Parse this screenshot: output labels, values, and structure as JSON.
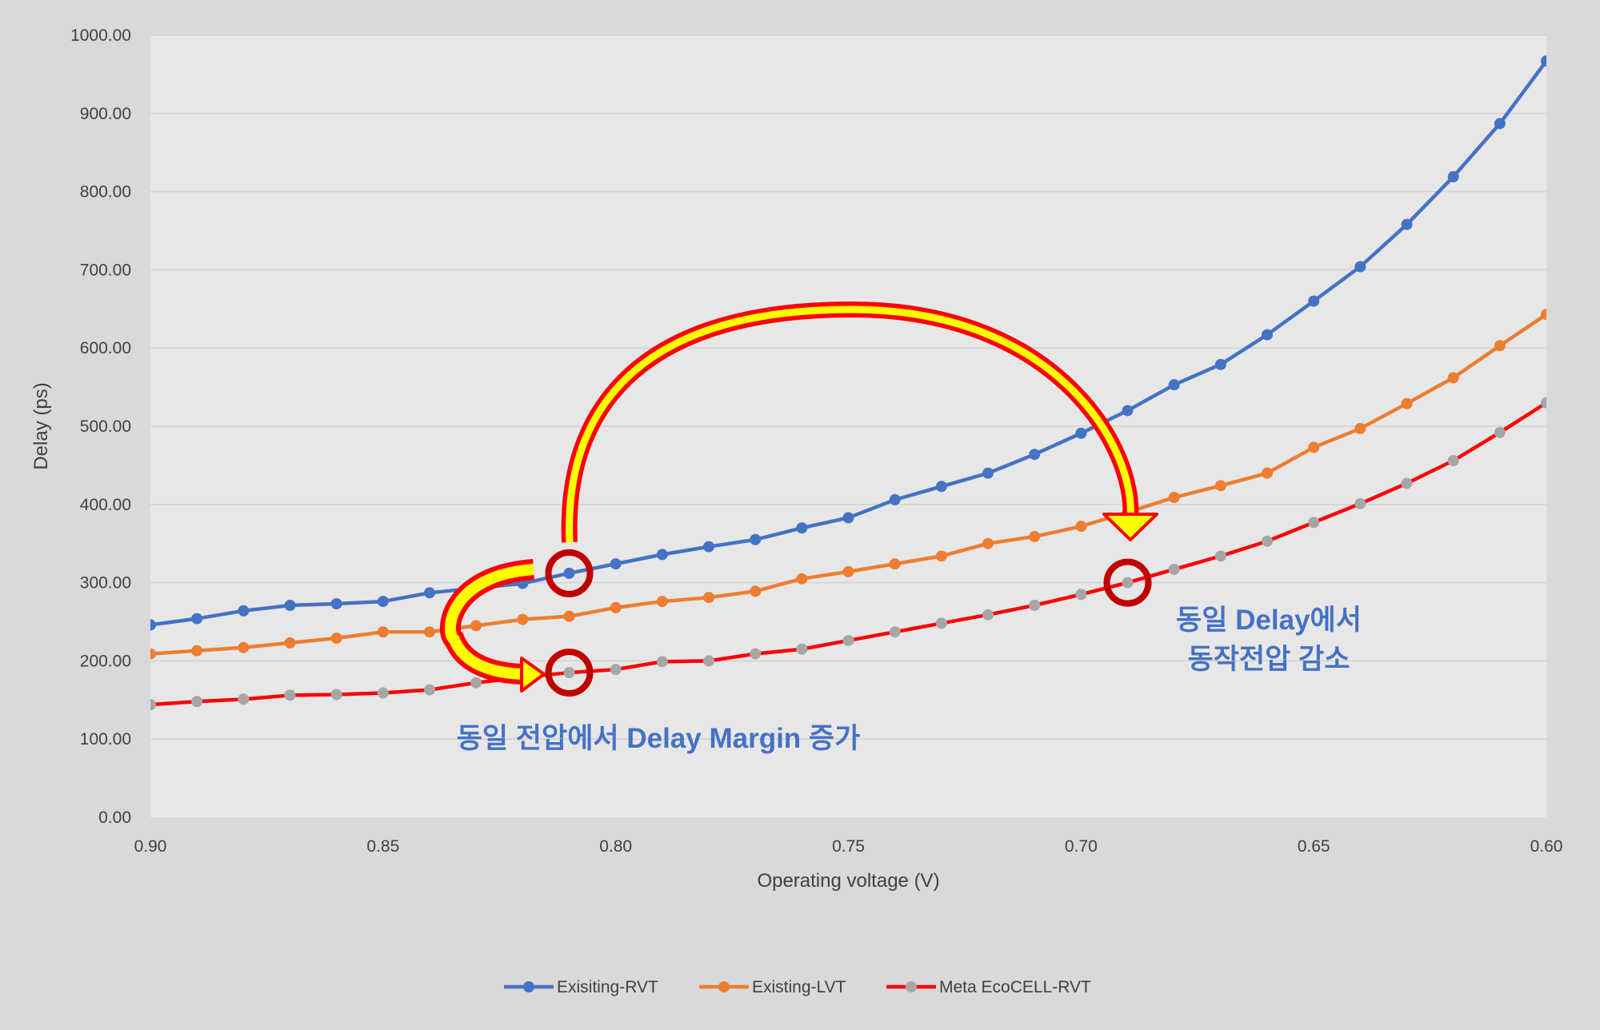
{
  "chart_data": {
    "type": "line",
    "title": "",
    "xlabel": "Operating voltage (V)",
    "ylabel": "Delay (ps)",
    "x_reversed": true,
    "xlim": [
      0.9,
      0.6
    ],
    "ylim": [
      0,
      1000
    ],
    "x": [
      0.9,
      0.89,
      0.88,
      0.87,
      0.86,
      0.85,
      0.84,
      0.83,
      0.82,
      0.81,
      0.8,
      0.79,
      0.78,
      0.77,
      0.76,
      0.75,
      0.74,
      0.73,
      0.72,
      0.71,
      0.7,
      0.69,
      0.68,
      0.67,
      0.66,
      0.65,
      0.64,
      0.63,
      0.62,
      0.61,
      0.6
    ],
    "x_ticks": [
      "0.90",
      "0.85",
      "0.80",
      "0.75",
      "0.70",
      "0.65",
      "0.60"
    ],
    "x_tick_values": [
      0.9,
      0.85,
      0.8,
      0.75,
      0.7,
      0.65,
      0.6
    ],
    "y_ticks": [
      "0.00",
      "100.00",
      "200.00",
      "300.00",
      "400.00",
      "500.00",
      "600.00",
      "700.00",
      "800.00",
      "900.00",
      "1000.00"
    ],
    "y_tick_values": [
      0,
      100,
      200,
      300,
      400,
      500,
      600,
      700,
      800,
      900,
      1000
    ],
    "grid": "horizontal",
    "legend_position": "bottom",
    "series": [
      {
        "name": "Exisiting-RVT",
        "line_color": "#4472c4",
        "marker_color": "#4472c4",
        "values": [
          246,
          254,
          264,
          271,
          273,
          276,
          287,
          293,
          299,
          312,
          324,
          336,
          346,
          355,
          370,
          383,
          406,
          423,
          440,
          464,
          491,
          520,
          553,
          579,
          617,
          660,
          704,
          758,
          819,
          887,
          967
        ]
      },
      {
        "name": "Existing-LVT",
        "line_color": "#ed7d31",
        "marker_color": "#ed7d31",
        "values": [
          209,
          213,
          217,
          223,
          229,
          237,
          237,
          245,
          253,
          257,
          268,
          276,
          281,
          289,
          305,
          314,
          324,
          334,
          350,
          359,
          372,
          390,
          409,
          424,
          440,
          473,
          497,
          529,
          562,
          603,
          643
        ]
      },
      {
        "name": "Meta EcoCELL-RVT",
        "line_color": "#ff0000",
        "marker_color": "#a6a6a6",
        "values": [
          144,
          148,
          151,
          156,
          157,
          159,
          163,
          172,
          179,
          185,
          189,
          199,
          200,
          209,
          215,
          226,
          237,
          248,
          259,
          271,
          285,
          300,
          317,
          334,
          353,
          377,
          401,
          427,
          456,
          492,
          530
        ]
      }
    ],
    "annotations": [
      {
        "lines": [
          "동일 전압에서 Delay Margin 증가"
        ],
        "color": "#4472c4"
      },
      {
        "lines": [
          "동일 Delay에서",
          "동작전압 감소"
        ],
        "color": "#4472c4"
      }
    ],
    "highlight_color": "#c00000",
    "arrow_fill": "#ffff00",
    "arrow_stroke": "#ff0000"
  }
}
